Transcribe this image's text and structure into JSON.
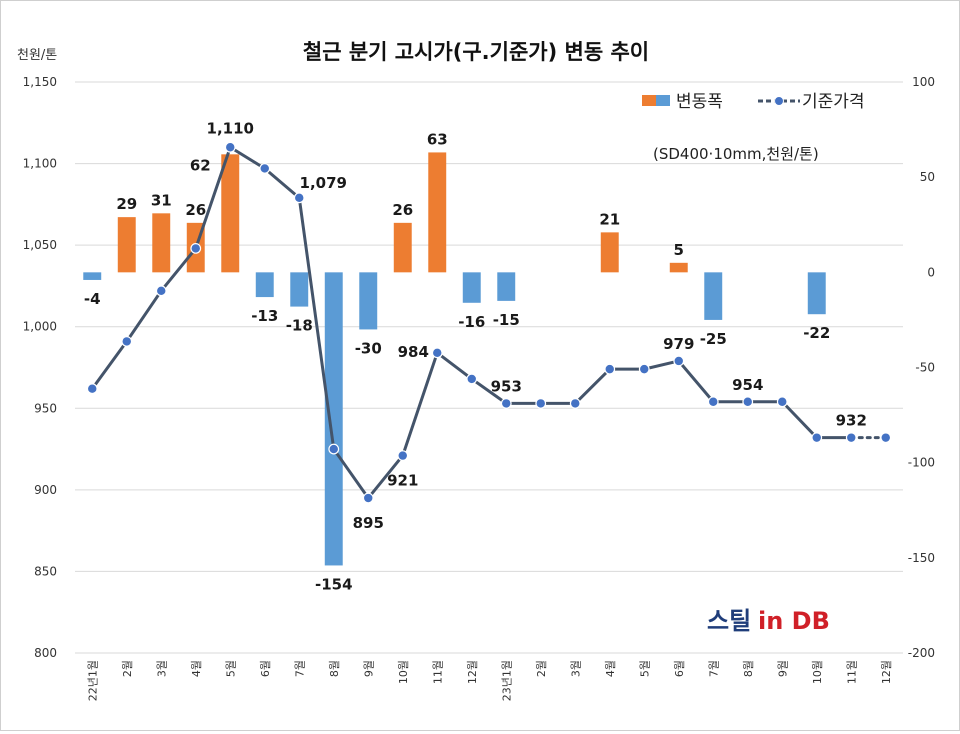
{
  "chart_data": {
    "type": "bar+line",
    "title": "철근 분기 고시가(구.기준가) 변동 추이",
    "left_axis_unit": "천원/톤",
    "spec_note": "(SD400·10mm,천원/톤)",
    "categories": [
      "22년1월",
      "2월",
      "3월",
      "4월",
      "5월",
      "6월",
      "7월",
      "8월",
      "9월",
      "10월",
      "11월",
      "12월",
      "23년1월",
      "2월",
      "3월",
      "4월",
      "5월",
      "6월",
      "7월",
      "8월",
      "9월",
      "10월",
      "11월",
      "12월"
    ],
    "left_axis": {
      "min": 800,
      "max": 1150,
      "step": 50,
      "tick_labels": [
        "800",
        "850",
        "900",
        "950",
        "1,000",
        "1,050",
        "1,100",
        "1,150"
      ]
    },
    "right_axis": {
      "min": -200,
      "max": 100,
      "step": 50,
      "tick_labels": [
        "-200",
        "-150",
        "-100",
        "-50",
        "0",
        "50",
        "100"
      ]
    },
    "series": [
      {
        "name": "변동폭",
        "type": "bar",
        "axis": "right",
        "positive_color": "#ed7d31",
        "negative_color": "#5b9bd5",
        "values": [
          -4,
          29,
          31,
          26,
          62,
          -13,
          -18,
          -154,
          -30,
          26,
          63,
          -16,
          -15,
          null,
          null,
          21,
          null,
          5,
          -25,
          null,
          null,
          -22,
          null,
          null
        ]
      },
      {
        "name": "기준가격",
        "type": "line",
        "axis": "left",
        "color": "#44546a",
        "values": [
          962,
          991,
          1022,
          1048,
          1110,
          1097,
          1079,
          925,
          895,
          921,
          984,
          968,
          953,
          953,
          953,
          974,
          974,
          979,
          954,
          954,
          954,
          932,
          932,
          932
        ],
        "dotted_from_index": 22
      }
    ],
    "data_labels": [
      {
        "index": 0,
        "series": "변동폭",
        "text": "-4"
      },
      {
        "index": 1,
        "series": "변동폭",
        "text": "29"
      },
      {
        "index": 2,
        "series": "변동폭",
        "text": "31"
      },
      {
        "index": 3,
        "series": "변동폭",
        "text": "26"
      },
      {
        "index": 4,
        "series": "변동폭",
        "text": "62"
      },
      {
        "index": 5,
        "series": "변동폭",
        "text": "-13"
      },
      {
        "index": 6,
        "series": "변동폭",
        "text": "-18"
      },
      {
        "index": 7,
        "series": "변동폭",
        "text": "-154"
      },
      {
        "index": 8,
        "series": "변동폭",
        "text": "-30"
      },
      {
        "index": 9,
        "series": "변동폭",
        "text": "26"
      },
      {
        "index": 10,
        "series": "변동폭",
        "text": "63"
      },
      {
        "index": 11,
        "series": "변동폭",
        "text": "-16"
      },
      {
        "index": 12,
        "series": "변동폭",
        "text": "-15"
      },
      {
        "index": 15,
        "series": "변동폭",
        "text": "21"
      },
      {
        "index": 17,
        "series": "변동폭",
        "text": "5"
      },
      {
        "index": 18,
        "series": "변동폭",
        "text": "-25"
      },
      {
        "index": 21,
        "series": "변동폭",
        "text": "-22"
      },
      {
        "index": 4,
        "series": "기준가격",
        "text": "1,110"
      },
      {
        "index": 6,
        "series": "기준가격",
        "text": "1,079"
      },
      {
        "index": 8,
        "series": "기준가격",
        "text": "895"
      },
      {
        "index": 9,
        "series": "기준가격",
        "text": "921"
      },
      {
        "index": 10,
        "series": "기준가격",
        "text": "984"
      },
      {
        "index": 12,
        "series": "기준가격",
        "text": "953"
      },
      {
        "index": 17,
        "series": "기준가격",
        "text": "979"
      },
      {
        "index": 19,
        "series": "기준가격",
        "text": "954"
      },
      {
        "index": 22,
        "series": "기준가격",
        "text": "932"
      }
    ],
    "legend": {
      "placement": "top-right",
      "entries": [
        "변동폭",
        "기준가격"
      ]
    },
    "grid": {
      "horizontal": true,
      "vertical": false,
      "color": "#d9d9d9"
    }
  },
  "logo": {
    "part_a": "스틸",
    "part_b": "in DB"
  }
}
